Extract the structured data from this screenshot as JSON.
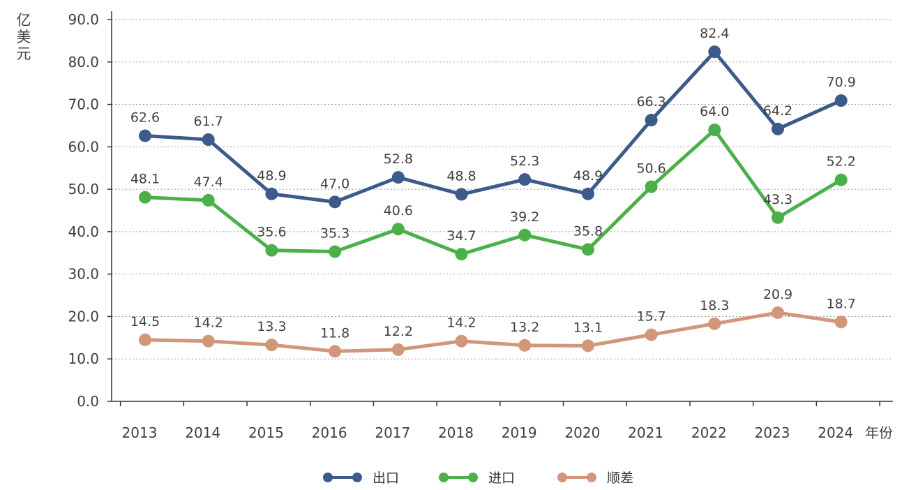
{
  "chart_data": {
    "type": "line",
    "ylabel": "亿美元",
    "xlabel": "年份",
    "x": [
      "2013",
      "2014",
      "2015",
      "2016",
      "2017",
      "2018",
      "2019",
      "2020",
      "2021",
      "2022",
      "2023",
      "2024"
    ],
    "ylim": [
      0,
      90
    ],
    "yticks": [
      "0.0",
      "10.0",
      "20.0",
      "30.0",
      "40.0",
      "50.0",
      "60.0",
      "70.0",
      "80.0",
      "90.0"
    ],
    "grid": "horizontal-dotted",
    "legend_position": "bottom",
    "series": [
      {
        "name": "出口",
        "color": "#3c5a8a",
        "values": [
          62.6,
          61.7,
          48.9,
          47.0,
          52.8,
          48.8,
          52.3,
          48.9,
          66.3,
          82.4,
          64.2,
          70.9
        ],
        "labels": [
          "62.6",
          "61.7",
          "48.9",
          "47.0",
          "52.8",
          "48.8",
          "52.3",
          "48.9",
          "66.3",
          "82.4",
          "64.2",
          "70.9"
        ]
      },
      {
        "name": "进口",
        "color": "#4cb04a",
        "values": [
          48.1,
          47.4,
          35.6,
          35.3,
          40.6,
          34.7,
          39.2,
          35.8,
          50.6,
          64.0,
          43.3,
          52.2
        ],
        "labels": [
          "48.1",
          "47.4",
          "35.6",
          "35.3",
          "40.6",
          "34.7",
          "39.2",
          "35.8",
          "50.6",
          "64.0",
          "43.3",
          "52.2"
        ]
      },
      {
        "name": "顺差",
        "color": "#d2967a",
        "values": [
          14.5,
          14.2,
          13.3,
          11.8,
          12.2,
          14.2,
          13.2,
          13.1,
          15.7,
          18.3,
          20.9,
          18.7
        ],
        "labels": [
          "14.5",
          "14.2",
          "13.3",
          "11.8",
          "12.2",
          "14.2",
          "13.2",
          "13.1",
          "15.7",
          "18.3",
          "20.9",
          "18.7"
        ]
      }
    ]
  }
}
